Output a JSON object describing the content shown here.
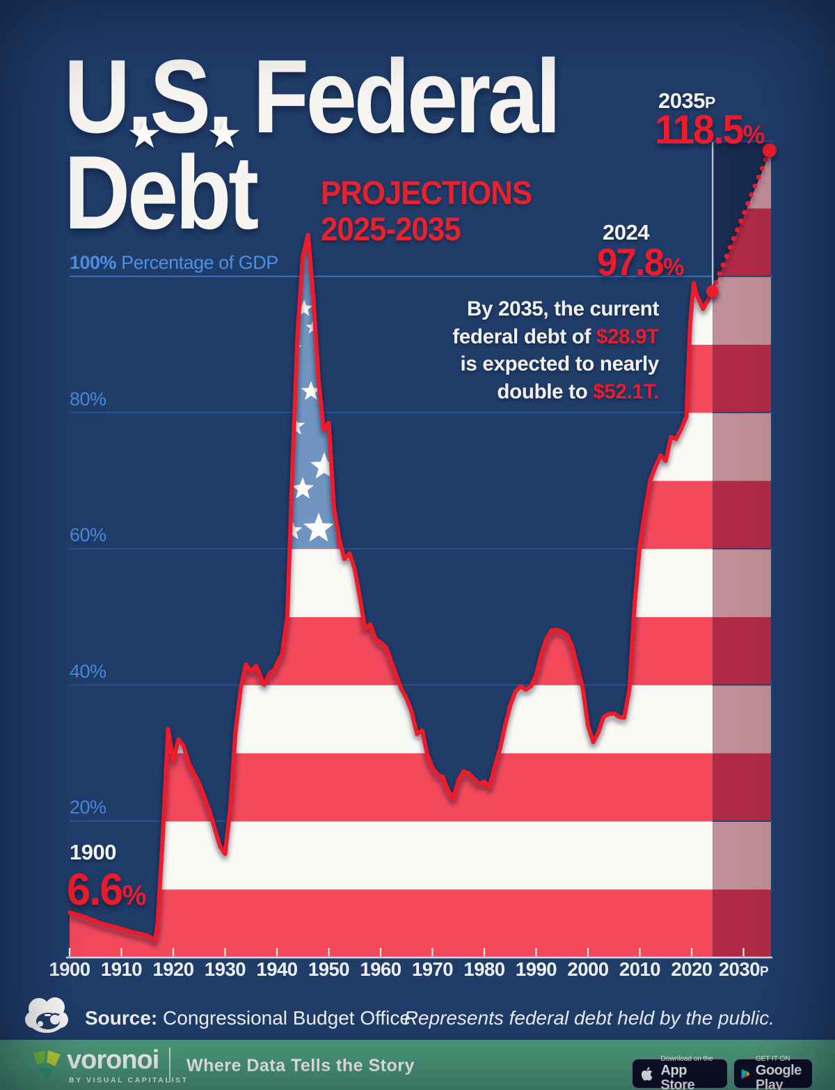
{
  "title": {
    "line1": "U.S. Federal",
    "line2": "Debt",
    "star": "★"
  },
  "subtitle": {
    "line1": "PROJECTIONS",
    "line2": "2025-2035"
  },
  "axis_label": {
    "bold": "100%",
    "rest": "Percentage of GDP"
  },
  "y_labels": [
    "80%",
    "60%",
    "40%",
    "20%"
  ],
  "annotations": {
    "start": {
      "year_label": "1900",
      "value": "6.6",
      "pct": "%"
    },
    "current": {
      "year_label": "2024",
      "value": "97.8",
      "pct": "%"
    },
    "proj": {
      "year_label": "2035",
      "suffix": "P",
      "value": "118.5",
      "pct": "%"
    }
  },
  "callout": {
    "lines": [
      [
        {
          "t": "By 2035, the current"
        }
      ],
      [
        {
          "t": "federal debt of "
        },
        {
          "t": "$28.9T",
          "red": true
        }
      ],
      [
        {
          "t": "is expected to nearly"
        }
      ],
      [
        {
          "t": "double to "
        },
        {
          "t": "$52.1T.",
          "red": true
        }
      ]
    ]
  },
  "source": {
    "label": "Source:",
    "text": " Congressional Budget Office"
  },
  "note": "Represents federal debt held by the public.",
  "footer": {
    "brand": "voronoi",
    "brand_sub": "BY VISUAL CAPITALIST",
    "tagline": "Where Data Tells the Story",
    "appstore_top": "Download on the",
    "appstore_bottom": "App Store",
    "gplay_top": "GET IT ON",
    "gplay_bottom": "Google Play"
  },
  "colors": {
    "background": "#203d6a",
    "line_red": "#ec1b2c",
    "accent_red": "#e8212f",
    "stripe_red": "#f3495b",
    "stripe_white": "#fbf9f4",
    "projection_red": "#b22b46",
    "projection_rose": "#c18f98",
    "canton_blue": "#7095c0",
    "grid_blue": "#3c70c5",
    "proj_grid_navy": "#223f6e",
    "label_blue": "#4a8ada",
    "dark_projection_bg": "#182b50",
    "divider_gray": "#cdd1da",
    "axis_white": "#d7dbe2",
    "footer_green": "#4f9e7c",
    "badge_navy": "#0d1026"
  },
  "chart_data": {
    "type": "area",
    "title": "U.S. Federal Debt",
    "ylabel": "Percentage of GDP",
    "unit": "% of GDP",
    "x_range": [
      1900,
      2035
    ],
    "ylim": [
      0,
      120
    ],
    "grid": true,
    "y_gridlines": [
      20,
      40,
      60,
      80,
      100
    ],
    "x_ticks": [
      1900,
      1910,
      1920,
      1930,
      1940,
      1950,
      1960,
      1970,
      1980,
      1990,
      2000,
      2010,
      2020,
      2030
    ],
    "x_tick_labels": [
      "1900",
      "1910",
      "1920",
      "1930",
      "1940",
      "1950",
      "1960",
      "1970",
      "1980",
      "1990",
      "2000",
      "2010",
      "2020",
      "2030P"
    ],
    "key_points": {
      "start": {
        "year": 1900,
        "value": 6.6
      },
      "current": {
        "year": 2024,
        "value": 97.8
      },
      "projected": {
        "year": 2035,
        "value": 118.5
      }
    },
    "history": [
      [
        1900,
        6.6
      ],
      [
        1903,
        5.9
      ],
      [
        1906,
        5.0
      ],
      [
        1909,
        4.4
      ],
      [
        1912,
        3.7
      ],
      [
        1915,
        3.2
      ],
      [
        1916.5,
        2.5
      ],
      [
        1917,
        5
      ],
      [
        1918,
        18
      ],
      [
        1919,
        33.5
      ],
      [
        1920,
        28.8
      ],
      [
        1921,
        32
      ],
      [
        1922,
        31
      ],
      [
        1923,
        28.5
      ],
      [
        1925,
        25.5
      ],
      [
        1927,
        21.5
      ],
      [
        1929,
        16.3
      ],
      [
        1930,
        15.2
      ],
      [
        1931,
        22
      ],
      [
        1932,
        33
      ],
      [
        1933,
        39.5
      ],
      [
        1934,
        43
      ],
      [
        1935,
        42
      ],
      [
        1936,
        42.8
      ],
      [
        1937.5,
        40
      ],
      [
        1938.7,
        41.8
      ],
      [
        1939.5,
        42.2
      ],
      [
        1940,
        43.1
      ],
      [
        1941,
        44.5
      ],
      [
        1942,
        50
      ],
      [
        1943,
        72
      ],
      [
        1944,
        92
      ],
      [
        1945,
        103
      ],
      [
        1946,
        106.1
      ],
      [
        1947,
        97
      ],
      [
        1948,
        85
      ],
      [
        1949,
        77.5
      ],
      [
        1950,
        78.5
      ],
      [
        1951,
        66
      ],
      [
        1952,
        61.5
      ],
      [
        1953,
        58.5
      ],
      [
        1954,
        59.3
      ],
      [
        1955,
        57
      ],
      [
        1956,
        52.8
      ],
      [
        1957,
        48.2
      ],
      [
        1958,
        48.9
      ],
      [
        1959,
        46.8
      ],
      [
        1960,
        46.2
      ],
      [
        1961,
        45.6
      ],
      [
        1962,
        43.6
      ],
      [
        1963,
        41.4
      ],
      [
        1964,
        39.4
      ],
      [
        1965,
        38
      ],
      [
        1966,
        36
      ],
      [
        1967,
        32.8
      ],
      [
        1968,
        33.3
      ],
      [
        1969,
        29.8
      ],
      [
        1970,
        27.8
      ],
      [
        1971,
        26.8
      ],
      [
        1972,
        26.5
      ],
      [
        1973,
        24.5
      ],
      [
        1974,
        23.3
      ],
      [
        1975,
        26
      ],
      [
        1976,
        27.3
      ],
      [
        1977,
        27
      ],
      [
        1978,
        26.2
      ],
      [
        1979,
        25.5
      ],
      [
        1980,
        25.8
      ],
      [
        1981,
        25
      ],
      [
        1982,
        28
      ],
      [
        1983,
        30.5
      ],
      [
        1984,
        34
      ],
      [
        1985,
        37
      ],
      [
        1986,
        39
      ],
      [
        1987,
        39.8
      ],
      [
        1988,
        39.3
      ],
      [
        1989,
        39.8
      ],
      [
        1990,
        41.5
      ],
      [
        1991,
        44.5
      ],
      [
        1992,
        46.8
      ],
      [
        1993,
        48
      ],
      [
        1994,
        48.1
      ],
      [
        1995,
        47.8
      ],
      [
        1996,
        47.3
      ],
      [
        1997,
        45.5
      ],
      [
        1998,
        42.5
      ],
      [
        1999,
        39.5
      ],
      [
        2000,
        34
      ],
      [
        2001,
        31.6
      ],
      [
        2002,
        33
      ],
      [
        2003,
        35.3
      ],
      [
        2004,
        35.7
      ],
      [
        2005,
        35.8
      ],
      [
        2006,
        35.3
      ],
      [
        2007,
        35.2
      ],
      [
        2008,
        39.4
      ],
      [
        2009,
        52
      ],
      [
        2010,
        60.5
      ],
      [
        2011,
        65.5
      ],
      [
        2012,
        70
      ],
      [
        2013,
        72
      ],
      [
        2014,
        73.7
      ],
      [
        2015,
        72.9
      ],
      [
        2016,
        76.4
      ],
      [
        2017,
        76.1
      ],
      [
        2018,
        77.6
      ],
      [
        2019,
        79.4
      ],
      [
        2019.7,
        93
      ],
      [
        2020.4,
        99
      ],
      [
        2021,
        97.2
      ],
      [
        2022.2,
        95.2
      ],
      [
        2023,
        96.3
      ],
      [
        2024,
        97.8
      ]
    ],
    "projection": [
      [
        2024,
        97.8
      ],
      [
        2035,
        118.5
      ]
    ],
    "flag": {
      "canton_top_pct": 107.2,
      "canton_bottom_pct": 60,
      "canton_right_year": 1951.5,
      "stars": [
        [
          437,
          443,
          13
        ],
        [
          450,
          470,
          11
        ],
        [
          421,
          500,
          13
        ],
        [
          447,
          562,
          15
        ],
        [
          424,
          612,
          15
        ],
        [
          466,
          670,
          21
        ],
        [
          435,
          702,
          17
        ],
        [
          458,
          759,
          23
        ],
        [
          420,
          762,
          15
        ]
      ]
    }
  }
}
